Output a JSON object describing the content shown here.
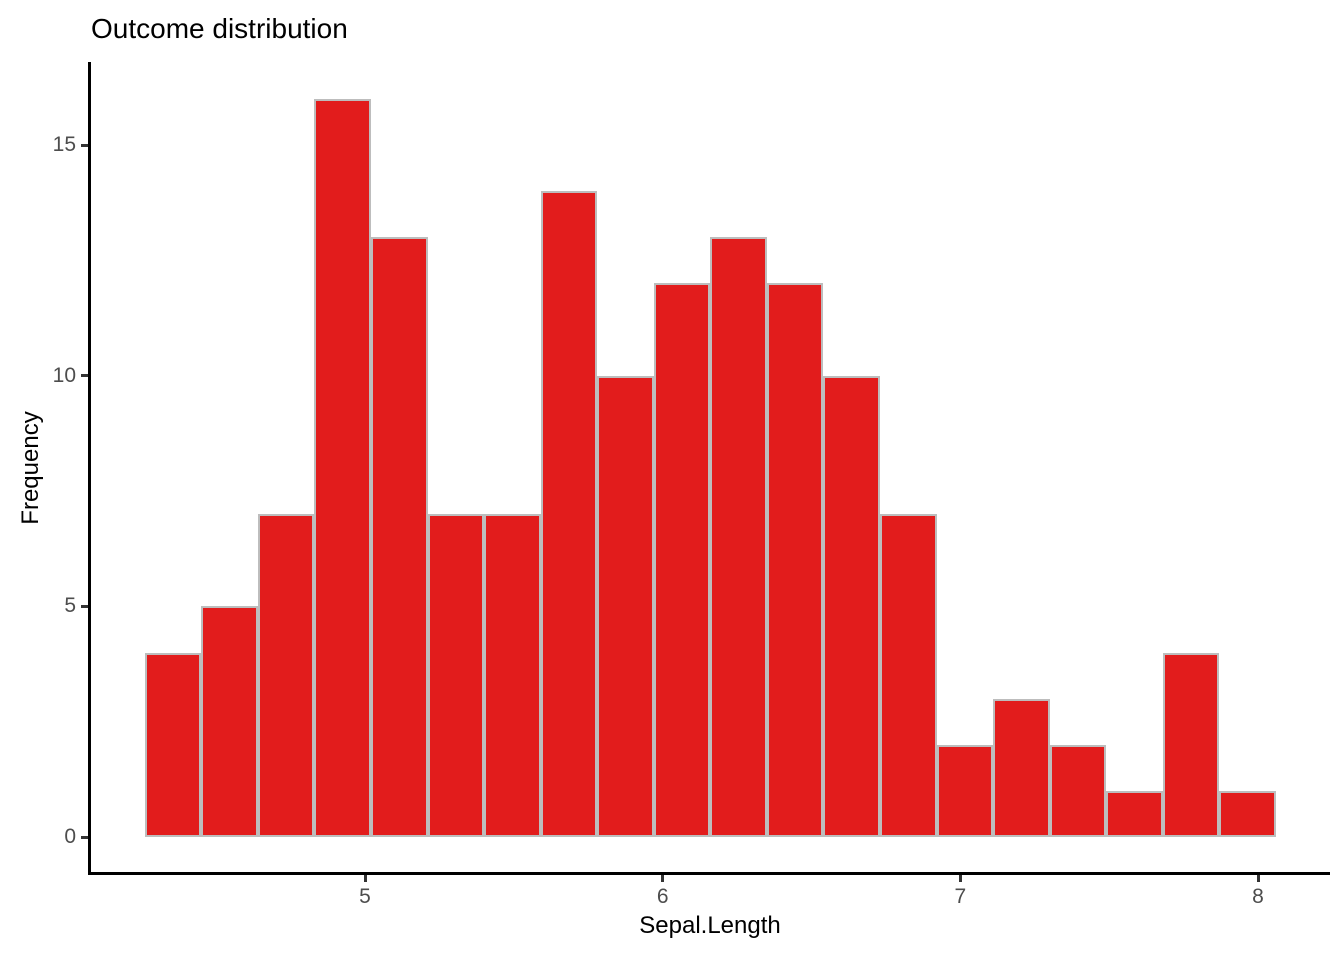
{
  "chart_data": {
    "type": "bar",
    "subtype": "histogram",
    "title": "Outcome distribution",
    "xlabel": "Sepal.Length",
    "ylabel": "Frequency",
    "bin_start": 4.26,
    "bin_width": 0.19,
    "counts": [
      4,
      5,
      7,
      16,
      13,
      7,
      7,
      14,
      10,
      12,
      13,
      12,
      10,
      7,
      2,
      3,
      2,
      1,
      4,
      1
    ],
    "x_ticks": [
      5,
      6,
      7,
      8
    ],
    "y_ticks": [
      0,
      5,
      10,
      15
    ],
    "x_range": [
      4.076,
      8.242
    ],
    "y_range": [
      -0.8,
      16.8
    ],
    "grid": false,
    "legend": "none",
    "colors": {
      "bar_fill": "#e21c1c",
      "bar_border": "#bdbdbd",
      "axis_line": "#000000",
      "tick_mark": "#333333",
      "tick_label": "#4d4d4d",
      "title": "#000000",
      "axis_label": "#000000"
    }
  }
}
